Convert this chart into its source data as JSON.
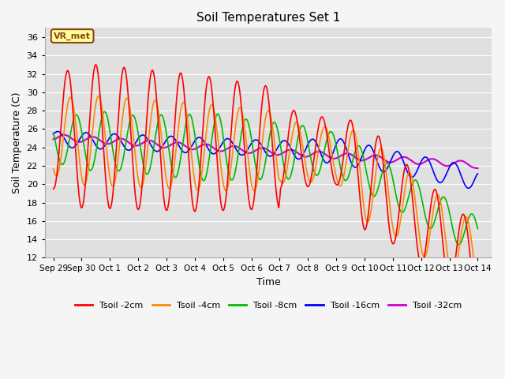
{
  "title": "Soil Temperatures Set 1",
  "xlabel": "Time",
  "ylabel": "Soil Temperature (C)",
  "ylim": [
    12,
    37
  ],
  "yticks": [
    12,
    14,
    16,
    18,
    20,
    22,
    24,
    26,
    28,
    30,
    32,
    34,
    36
  ],
  "plot_bg_color": "#e0e0e0",
  "fig_bg_color": "#f5f5f5",
  "grid_color": "#ffffff",
  "annotation_text": "VR_met",
  "annotation_box_color": "#ffff99",
  "annotation_border_color": "#8B4513",
  "legend_labels": [
    "Tsoil -2cm",
    "Tsoil -4cm",
    "Tsoil -8cm",
    "Tsoil -16cm",
    "Tsoil -32cm"
  ],
  "line_colors": [
    "#ff0000",
    "#ff8800",
    "#00bb00",
    "#0000ff",
    "#cc00cc"
  ],
  "line_widths": [
    1.2,
    1.2,
    1.2,
    1.2,
    1.5
  ],
  "xtick_labels": [
    "Sep 29",
    "Sep 30",
    "Oct 1",
    "Oct 2",
    "Oct 3",
    "Oct 4",
    "Oct 5",
    "Oct 6",
    "Oct 7",
    "Oct 8",
    "Oct 9",
    "Oct 10",
    "Oct 11",
    "Oct 12",
    "Oct 13",
    "Oct 14"
  ],
  "n_points": 720
}
